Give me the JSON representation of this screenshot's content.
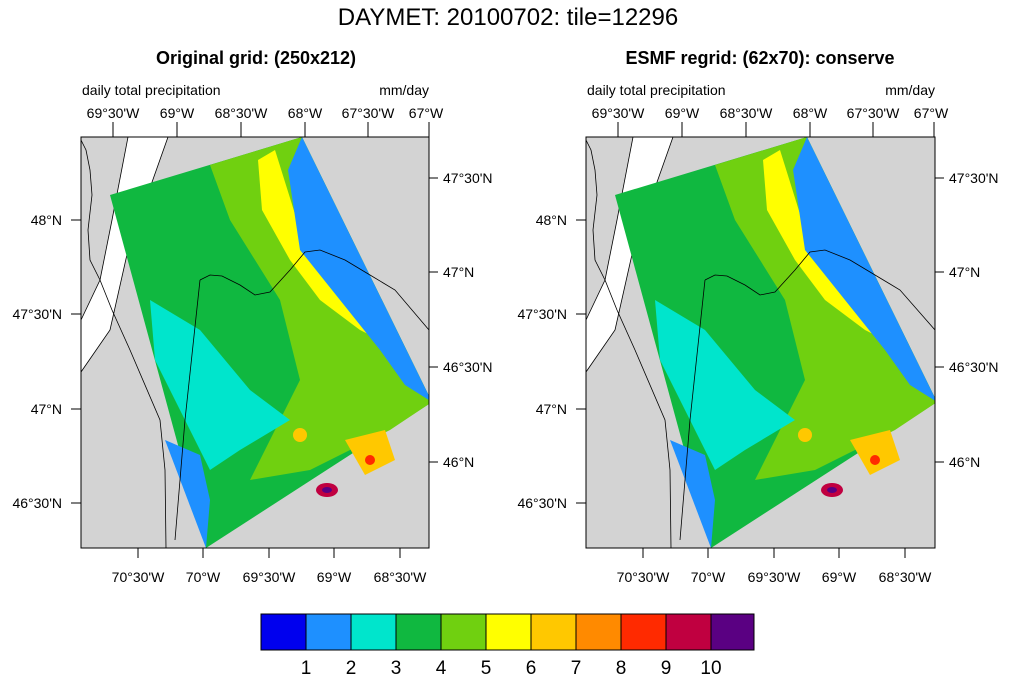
{
  "figure": {
    "title": "DAYMET: 20100702: tile=12296"
  },
  "panels": [
    {
      "title": "Original grid: (250x212)",
      "left_label": "daily total precipitation",
      "right_label": "mm/day",
      "top_ticks": [
        "69°30'W",
        "69°W",
        "68°30'W",
        "68°W",
        "67°30'W",
        "67°W"
      ],
      "bottom_ticks": [
        "70°30'W",
        "70°W",
        "69°30'W",
        "69°W",
        "68°30'W"
      ],
      "left_ticks": [
        "48°N",
        "47°30'N",
        "47°N",
        "46°30'N"
      ],
      "right_ticks": [
        "47°30'N",
        "47°N",
        "46°30'N",
        "46°N"
      ]
    },
    {
      "title": "ESMF regrid: (62x70): conserve",
      "left_label": "daily total precipitation",
      "right_label": "mm/day",
      "top_ticks": [
        "69°30'W",
        "69°W",
        "68°30'W",
        "68°W",
        "67°30'W",
        "67°W"
      ],
      "bottom_ticks": [
        "70°30'W",
        "70°W",
        "69°30'W",
        "69°W",
        "68°30'W"
      ],
      "left_ticks": [
        "48°N",
        "47°30'N",
        "47°N",
        "46°30'N"
      ],
      "right_ticks": [
        "47°30'N",
        "47°N",
        "46°30'N",
        "46°N"
      ]
    }
  ],
  "colorbar": {
    "labels": [
      "1",
      "2",
      "3",
      "4",
      "5",
      "6",
      "7",
      "8",
      "9",
      "10"
    ],
    "colors": [
      "#0000ee",
      "#1e90ff",
      "#00e5cc",
      "#10b840",
      "#70d010",
      "#ffff00",
      "#ffc800",
      "#ff8a00",
      "#ff2a00",
      "#c00040",
      "#5a0082"
    ]
  },
  "map_colors": {
    "land": "#d3d3d3",
    "water": "#ffffff",
    "border": "#000000"
  }
}
